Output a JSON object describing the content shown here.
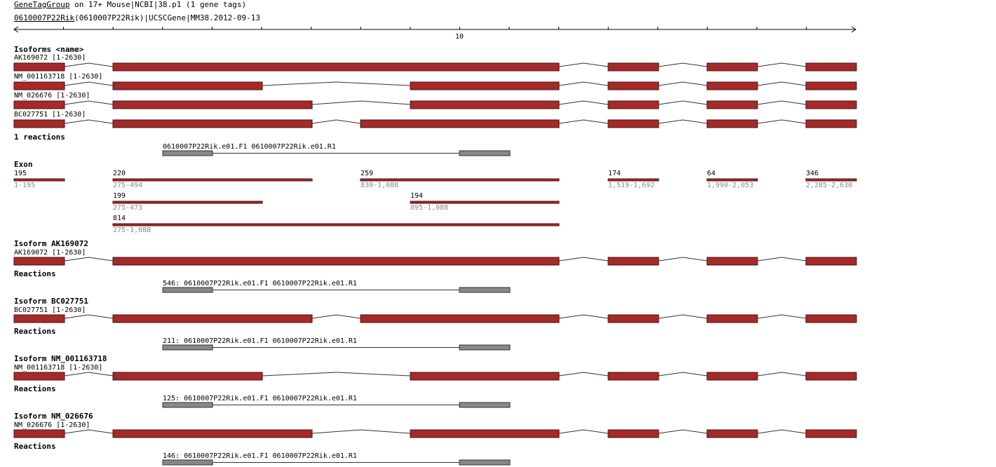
{
  "header": {
    "link": "GeneTagGroup",
    "title_rest": " on 17+ Mouse|NCBI|38.p1 (1 gene tags)",
    "gene": "0610007P22Rik",
    "gene_rest": "(0610007P22Rik)|UCSCGene|MM38.2012-09-13"
  },
  "ruler": {
    "label": "10"
  },
  "isoforms": {
    "heading": "Isoforms <name>",
    "items": [
      "AK169072 [1-2630]",
      "NM_001163718 [1-2630]",
      "NM_026676 [1-2630]",
      "BC027751 [1-2630]"
    ]
  },
  "reactions": {
    "heading": "1 reactions",
    "label": "0610007P22Rik.e01.F1 0610007P22Rik.e01.R1"
  },
  "exons": {
    "heading": "Exon",
    "items": [
      {
        "size": "195",
        "range": "1-195"
      },
      {
        "size": "220",
        "range": "275-494"
      },
      {
        "size": "259",
        "range": "830-1,088"
      },
      {
        "size": "174",
        "range": "1,519-1,692"
      },
      {
        "size": "64",
        "range": "1,990-2,053"
      },
      {
        "size": "346",
        "range": "2,285-2,630"
      },
      {
        "size": "199",
        "range": "275-473"
      },
      {
        "size": "194",
        "range": "895-1,088"
      },
      {
        "size": "814",
        "range": "275-1,088"
      }
    ]
  },
  "sections": [
    {
      "heading": "Isoform AK169072",
      "label": "AK169072 [1-2630]",
      "reactions_heading": "Reactions",
      "reaction": "546: 0610007P22Rik.e01.F1 0610007P22Rik.e01.R1"
    },
    {
      "heading": "Isoform BC027751",
      "label": "BC027751 [1-2630]",
      "reactions_heading": "Reactions",
      "reaction": "211: 0610007P22Rik.e01.F1 0610007P22Rik.e01.R1"
    },
    {
      "heading": "Isoform NM_001163718",
      "label": "NM_001163718 [1-2630]",
      "reactions_heading": "Reactions",
      "reaction": "125: 0610007P22Rik.e01.F1 0610007P22Rik.e01.R1"
    },
    {
      "heading": "Isoform NM_026676",
      "label": "NM_026676 [1-2630]",
      "reactions_heading": "Reactions",
      "reaction": "146: 0610007P22Rik.e01.F1 0610007P22Rik.e01.R1"
    }
  ]
}
